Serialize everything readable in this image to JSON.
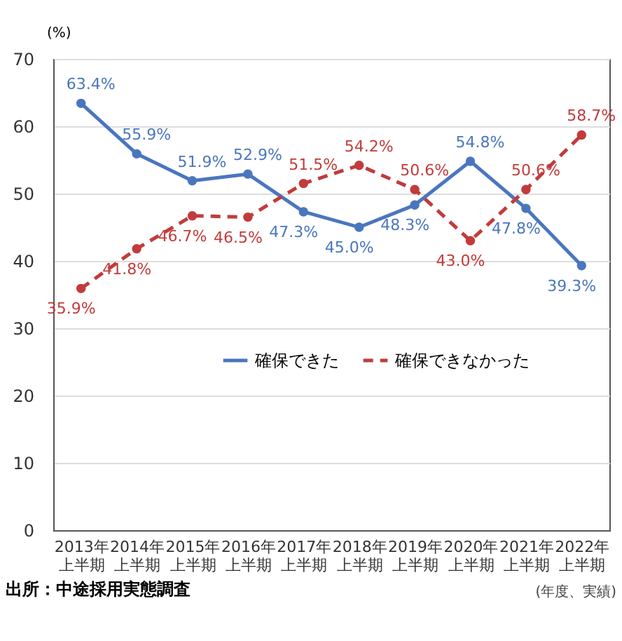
{
  "chart_data": {
    "type": "line",
    "ylabel": "(%)",
    "categories": [
      "2013年上半期",
      "2014年上半期",
      "2015年上半期",
      "2016年上半期",
      "2017年上半期",
      "2018年上半期",
      "2019年上半期",
      "2020年上半期",
      "2021年上半期",
      "2022年上半期"
    ],
    "series": [
      {
        "name": "確保できた",
        "color": "#4a76bf",
        "line_style": "solid",
        "values": [
          63.4,
          55.9,
          51.9,
          52.9,
          47.3,
          45.0,
          48.3,
          54.8,
          47.8,
          39.3
        ],
        "value_labels": [
          "63.4%",
          "55.9%",
          "51.9%",
          "52.9%",
          "47.3%",
          "45.0%",
          "48.3%",
          "54.8%",
          "47.8%",
          "39.3%"
        ]
      },
      {
        "name": "確保できなかった",
        "color": "#c23b3b",
        "line_style": "dashed",
        "values": [
          35.9,
          41.8,
          46.7,
          46.5,
          51.5,
          54.2,
          50.6,
          43.0,
          50.6,
          58.7
        ],
        "value_labels": [
          "35.9%",
          "41.8%",
          "46.7%",
          "46.5%",
          "51.5%",
          "54.2%",
          "50.6%",
          "43.0%",
          "50.6%",
          "58.7%"
        ]
      }
    ],
    "ylim": [
      0,
      70
    ],
    "yticks": [
      0,
      10,
      20,
      30,
      40,
      50,
      60,
      70
    ],
    "grid": "y",
    "marker": "circle",
    "legend": "bottom",
    "annotations": [
      "出所：中途採用実態調査",
      "(年度、実績)"
    ]
  }
}
